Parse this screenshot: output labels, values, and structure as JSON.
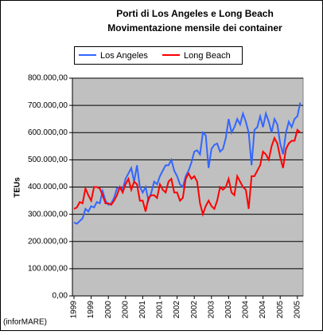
{
  "chart_data": {
    "type": "line",
    "title": "Porti di Los Angeles e Long Beach",
    "subtitle": "Movimentazione mensile dei container",
    "y_label": "TEUs",
    "source": "(inforMARE)",
    "legend": "top",
    "grid": true,
    "categories": [
      "1999",
      null,
      null,
      null,
      null,
      null,
      "1999",
      null,
      null,
      null,
      null,
      null,
      "2000",
      null,
      null,
      null,
      null,
      null,
      "2000",
      null,
      null,
      null,
      null,
      null,
      "2001",
      null,
      null,
      null,
      null,
      null,
      "2001",
      null,
      null,
      null,
      null,
      null,
      "2002",
      null,
      null,
      null,
      null,
      null,
      "2002",
      null,
      null,
      null,
      null,
      null,
      "2003",
      null,
      null,
      null,
      null,
      null,
      "2003",
      null,
      null,
      null,
      null,
      null,
      "2004",
      null,
      null,
      null,
      null,
      null,
      "2004",
      null,
      null,
      null,
      null,
      null,
      "2005",
      null,
      null,
      null,
      null,
      null,
      "2005",
      null
    ],
    "ylim": [
      0,
      800000
    ],
    "yticks": [
      {
        "value": 0,
        "label": "0,00"
      },
      {
        "value": 100000,
        "label": "100.000,00"
      },
      {
        "value": 200000,
        "label": "200.000,00"
      },
      {
        "value": 300000,
        "label": "300.000,00"
      },
      {
        "value": 400000,
        "label": "400.000,00"
      },
      {
        "value": 500000,
        "label": "500.000,00"
      },
      {
        "value": 600000,
        "label": "600.000,00"
      },
      {
        "value": 700000,
        "label": "700.000,00"
      },
      {
        "value": 800000,
        "label": "800.000,00"
      }
    ],
    "series": [
      {
        "name": "Los  Angeles",
        "color": "#3366ff",
        "values": [
          270000,
          265000,
          275000,
          285000,
          320000,
          310000,
          330000,
          325000,
          345000,
          340000,
          385000,
          350000,
          335000,
          340000,
          360000,
          395000,
          400000,
          390000,
          430000,
          450000,
          470000,
          420000,
          480000,
          400000,
          380000,
          400000,
          350000,
          380000,
          420000,
          410000,
          440000,
          460000,
          480000,
          480000,
          500000,
          460000,
          440000,
          410000,
          400000,
          440000,
          460000,
          490000,
          530000,
          535000,
          520000,
          600000,
          590000,
          470000,
          540000,
          555000,
          560000,
          530000,
          540000,
          580000,
          650000,
          600000,
          620000,
          650000,
          630000,
          670000,
          640000,
          600000,
          480000,
          610000,
          620000,
          660000,
          620000,
          670000,
          640000,
          600000,
          650000,
          630000,
          560000,
          520000,
          600000,
          640000,
          620000,
          650000,
          660000,
          710000
        ]
      },
      {
        "name": "Long  Beach",
        "color": "#ff0000",
        "values": [
          320000,
          325000,
          345000,
          340000,
          395000,
          370000,
          350000,
          400000,
          400000,
          395000,
          370000,
          340000,
          340000,
          335000,
          350000,
          370000,
          400000,
          380000,
          410000,
          430000,
          390000,
          420000,
          410000,
          350000,
          350000,
          310000,
          360000,
          370000,
          370000,
          360000,
          410000,
          390000,
          380000,
          420000,
          430000,
          380000,
          380000,
          350000,
          360000,
          430000,
          450000,
          430000,
          440000,
          420000,
          340000,
          300000,
          330000,
          350000,
          330000,
          320000,
          350000,
          400000,
          390000,
          400000,
          430000,
          380000,
          370000,
          440000,
          420000,
          400000,
          390000,
          320000,
          440000,
          440000,
          460000,
          480000,
          530000,
          520000,
          500000,
          550000,
          580000,
          560000,
          510000,
          470000,
          540000,
          560000,
          570000,
          570000,
          610000,
          600000
        ]
      }
    ]
  }
}
